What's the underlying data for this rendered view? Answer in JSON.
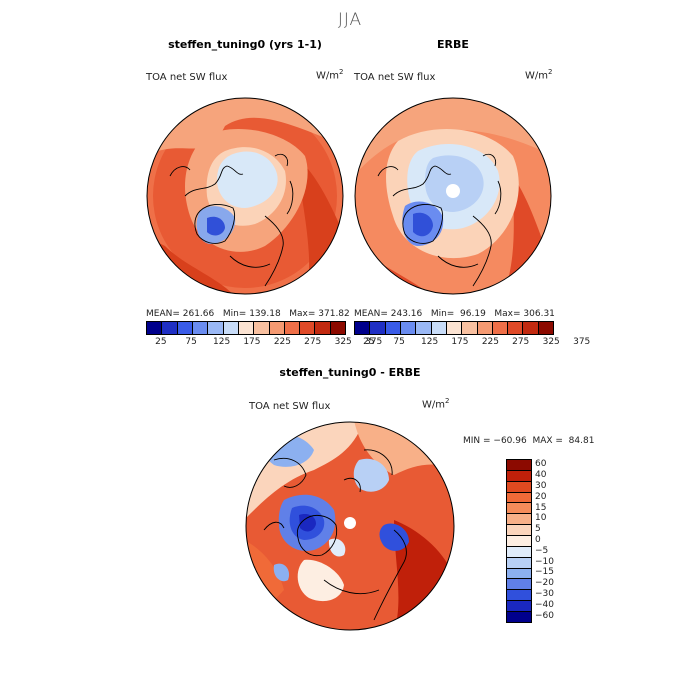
{
  "season": "JJA",
  "panels": {
    "model": {
      "title": "steffen_tuning0 (yrs 1-1)",
      "variable": "TOA net SW flux",
      "unit_base": "W/m",
      "unit_exp": "2",
      "stats": "MEAN= 261.66   Min= 139.18   Max= 371.82"
    },
    "obs": {
      "title": "ERBE",
      "variable": "TOA net SW flux",
      "unit_base": "W/m",
      "unit_exp": "2",
      "stats": "MEAN= 243.16   Min=  96.19   Max= 306.31"
    },
    "diff": {
      "title": "steffen_tuning0 - ERBE",
      "variable": "TOA net SW flux",
      "unit_base": "W/m",
      "unit_exp": "2",
      "minmax": "MIN = −60.96  MAX =  84.81"
    }
  },
  "colorbar_abs": {
    "colors": [
      "#00008c",
      "#1f2fc4",
      "#3a5ce8",
      "#6a8cf0",
      "#9ab8f5",
      "#c8dcf8",
      "#fbe3d2",
      "#f8c0a0",
      "#f59a72",
      "#ef6f48",
      "#e04a28",
      "#c22a10",
      "#8c0a00"
    ],
    "ticks": [
      "25",
      "75",
      "125",
      "175",
      "225",
      "275",
      "325",
      "375"
    ]
  },
  "colorbar_diff": {
    "colors": [
      "#8c0a00",
      "#c0200a",
      "#e04a20",
      "#f06a38",
      "#f58c5a",
      "#f8b088",
      "#fbd5bc",
      "#fdeee2",
      "#e0ecfa",
      "#b8d0f5",
      "#8cb0f0",
      "#6080e8",
      "#3050dc",
      "#1a28c0",
      "#00008c"
    ],
    "ticks": [
      "60",
      "40",
      "30",
      "20",
      "15",
      "10",
      "5",
      "0",
      "−5",
      "−10",
      "−15",
      "−20",
      "−30",
      "−40",
      "−60"
    ]
  },
  "map_colors": {
    "orange_dark": "#d8401c",
    "orange_mid": "#ef7048",
    "orange_light": "#f6a47c",
    "peach": "#fbd3b8",
    "ice_blue": "#d8e8f8",
    "blue_mid": "#88a8ec",
    "blue_dark": "#3050d8"
  }
}
